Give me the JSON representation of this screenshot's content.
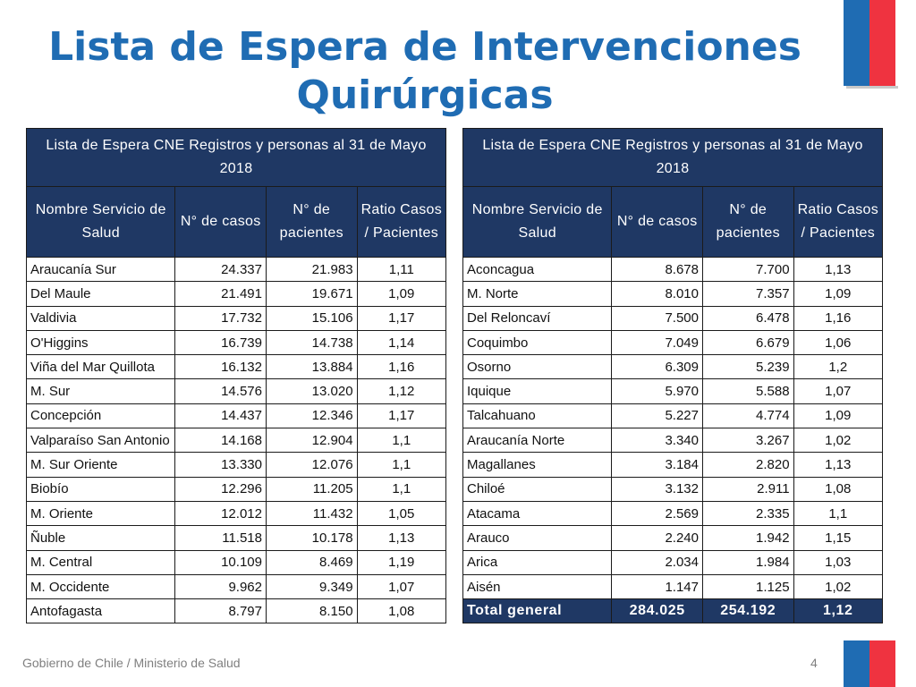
{
  "title": {
    "line1": "Lista de Espera de Intervenciones",
    "line2": "Quirúrgicas"
  },
  "tables": {
    "left": {
      "caption": "Lista de Espera CNE Registros y  personas al  31 de Mayo 2018",
      "headers": [
        "Nombre Servicio de Salud",
        "N° de casos",
        "N° de pacientes",
        "Ratio Casos / Pacientes"
      ],
      "rows": [
        [
          "Araucanía Sur",
          "24.337",
          "21.983",
          "1,11"
        ],
        [
          "Del Maule",
          "21.491",
          "19.671",
          "1,09"
        ],
        [
          "Valdivia",
          "17.732",
          "15.106",
          "1,17"
        ],
        [
          "O'Higgins",
          "16.739",
          "14.738",
          "1,14"
        ],
        [
          "Viña del Mar Quillota",
          "16.132",
          "13.884",
          "1,16"
        ],
        [
          "M.  Sur",
          "14.576",
          "13.020",
          "1,12"
        ],
        [
          "Concepción",
          "14.437",
          "12.346",
          "1,17"
        ],
        [
          "Valparaíso San Antonio",
          "14.168",
          "12.904",
          "1,1"
        ],
        [
          "M.  Sur Oriente",
          "13.330",
          "12.076",
          "1,1"
        ],
        [
          "Biobío",
          "12.296",
          "11.205",
          "1,1"
        ],
        [
          "M.  Oriente",
          "12.012",
          "11.432",
          "1,05"
        ],
        [
          "Ñuble",
          "11.518",
          "10.178",
          "1,13"
        ],
        [
          "M.  Central",
          "10.109",
          "8.469",
          "1,19"
        ],
        [
          "M.  Occidente",
          "9.962",
          "9.349",
          "1,07"
        ],
        [
          "Antofagasta",
          "8.797",
          "8.150",
          "1,08"
        ]
      ]
    },
    "right": {
      "caption": "Lista de Espera CNE Registros y  personas al  31 de Mayo 2018",
      "headers": [
        "Nombre Servicio de Salud",
        "N° de casos",
        "N° de pacientes",
        "Ratio Casos / Pacientes"
      ],
      "rows": [
        [
          "Aconcagua",
          "8.678",
          "7.700",
          "1,13"
        ],
        [
          "M.  Norte",
          "8.010",
          "7.357",
          "1,09"
        ],
        [
          "Del Reloncaví",
          "7.500",
          "6.478",
          "1,16"
        ],
        [
          "Coquimbo",
          "7.049",
          "6.679",
          "1,06"
        ],
        [
          "Osorno",
          "6.309",
          "5.239",
          "1,2"
        ],
        [
          "Iquique",
          "5.970",
          "5.588",
          "1,07"
        ],
        [
          "Talcahuano",
          "5.227",
          "4.774",
          "1,09"
        ],
        [
          "Araucanía Norte",
          "3.340",
          "3.267",
          "1,02"
        ],
        [
          "Magallanes",
          "3.184",
          "2.820",
          "1,13"
        ],
        [
          "Chiloé",
          "3.132",
          "2.911",
          "1,08"
        ],
        [
          "Atacama",
          "2.569",
          "2.335",
          "1,1"
        ],
        [
          "Arauco",
          "2.240",
          "1.942",
          "1,15"
        ],
        [
          "Arica",
          "2.034",
          "1.984",
          "1,03"
        ],
        [
          "Aisén",
          "1.147",
          "1.125",
          "1,02"
        ]
      ],
      "total": [
        "Total general",
        "284.025",
        "254.192",
        "1,12"
      ]
    }
  },
  "footer": {
    "text": "Gobierno de Chile / Ministerio de Salud",
    "page": "4"
  },
  "colors": {
    "title": "#1f6cb3",
    "header_bg": "#1f3864",
    "flag_blue": "#1f6cb3",
    "flag_red": "#ef3340"
  }
}
